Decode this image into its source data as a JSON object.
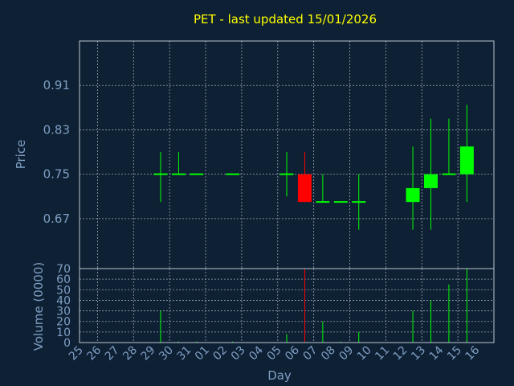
{
  "colors": {
    "background": "#0e2033",
    "plot_border": "#bcc6d0",
    "grid": "#9aa6b2",
    "title": "#ffff00",
    "axis_text": "#7f9fc4",
    "up": "#00ff00",
    "down": "#ff0000"
  },
  "chart_data": [
    {
      "type": "candlestick",
      "title": "PET - last updated 15/01/2026",
      "ylabel": "Price",
      "ylim": [
        0.58,
        0.99
      ],
      "yticks": [
        "0.67",
        "0.75",
        "0.83",
        "0.91"
      ],
      "grid": true,
      "x": [
        "25",
        "26",
        "27",
        "28",
        "29",
        "30",
        "31",
        "01",
        "02",
        "03",
        "04",
        "05",
        "06",
        "07",
        "08",
        "09",
        "10",
        "11",
        "12",
        "13",
        "14",
        "15",
        "16"
      ],
      "candles": [
        {
          "x": "29",
          "open": 0.75,
          "high": 0.79,
          "low": 0.7,
          "close": 0.75
        },
        {
          "x": "30",
          "open": 0.75,
          "high": 0.79,
          "low": 0.75,
          "close": 0.75
        },
        {
          "x": "31",
          "open": 0.75,
          "high": 0.75,
          "low": 0.75,
          "close": 0.75
        },
        {
          "x": "02",
          "open": 0.75,
          "high": 0.75,
          "low": 0.75,
          "close": 0.75
        },
        {
          "x": "05",
          "open": 0.75,
          "high": 0.79,
          "low": 0.71,
          "close": 0.75
        },
        {
          "x": "06",
          "open": 0.75,
          "high": 0.79,
          "low": 0.7,
          "close": 0.7
        },
        {
          "x": "07",
          "open": 0.7,
          "high": 0.75,
          "low": 0.7,
          "close": 0.7
        },
        {
          "x": "08",
          "open": 0.7,
          "high": 0.7,
          "low": 0.7,
          "close": 0.7
        },
        {
          "x": "09",
          "open": 0.7,
          "high": 0.75,
          "low": 0.65,
          "close": 0.7
        },
        {
          "x": "12",
          "open": 0.7,
          "high": 0.8,
          "low": 0.65,
          "close": 0.725
        },
        {
          "x": "13",
          "open": 0.725,
          "high": 0.85,
          "low": 0.65,
          "close": 0.75
        },
        {
          "x": "14",
          "open": 0.75,
          "high": 0.85,
          "low": 0.75,
          "close": 0.75
        },
        {
          "x": "15",
          "open": 0.75,
          "high": 0.875,
          "low": 0.7,
          "close": 0.8
        }
      ]
    },
    {
      "type": "bar",
      "ylabel": "Volume (0000)",
      "xlabel": "Day",
      "ylim": [
        0,
        70
      ],
      "yticks": [
        "0",
        "10",
        "20",
        "30",
        "40",
        "50",
        "60",
        "70"
      ],
      "grid": true,
      "x": [
        "25",
        "26",
        "27",
        "28",
        "29",
        "30",
        "31",
        "01",
        "02",
        "03",
        "04",
        "05",
        "06",
        "07",
        "08",
        "09",
        "10",
        "11",
        "12",
        "13",
        "14",
        "15",
        "16"
      ],
      "bars": [
        {
          "x": "29",
          "value": 30,
          "direction": "up"
        },
        {
          "x": "30",
          "value": 1,
          "direction": "up"
        },
        {
          "x": "31",
          "value": 1,
          "direction": "up"
        },
        {
          "x": "02",
          "value": 1,
          "direction": "up"
        },
        {
          "x": "05",
          "value": 8,
          "direction": "up"
        },
        {
          "x": "06",
          "value": 70,
          "direction": "down"
        },
        {
          "x": "07",
          "value": 20,
          "direction": "up"
        },
        {
          "x": "08",
          "value": 1,
          "direction": "up"
        },
        {
          "x": "09",
          "value": 10,
          "direction": "up"
        },
        {
          "x": "12",
          "value": 30,
          "direction": "up"
        },
        {
          "x": "13",
          "value": 40,
          "direction": "up"
        },
        {
          "x": "14",
          "value": 55,
          "direction": "up"
        },
        {
          "x": "15",
          "value": 70,
          "direction": "up"
        }
      ]
    }
  ]
}
